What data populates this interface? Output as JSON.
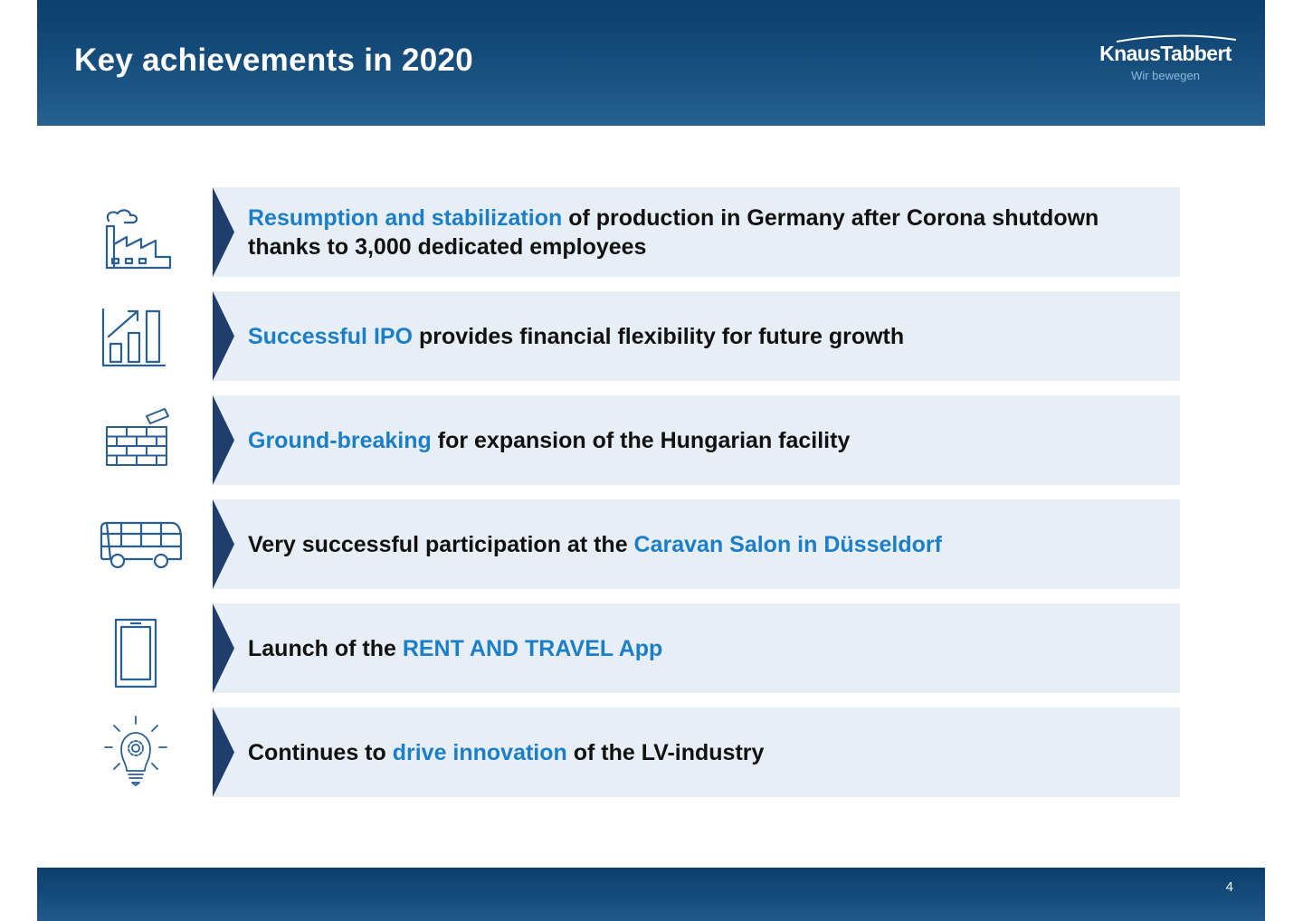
{
  "header": {
    "title": "Key achievements in 2020",
    "logo_name": "KnausTabbert",
    "logo_tagline": "Wir bewegen"
  },
  "colors": {
    "header_blue": "#0c3f6d",
    "highlight_blue": "#1b7ec8",
    "item_background": "#e8eef6",
    "arrow_navy": "#1f3e6e",
    "icon_blue": "#2a5f96"
  },
  "achievements": [
    {
      "icon": "factory-icon",
      "segments": [
        {
          "text": "Resumption and stabilization",
          "highlight": true
        },
        {
          "text": " of production in Germany after Corona shutdown thanks to 3,000 dedicated employees",
          "highlight": false
        }
      ]
    },
    {
      "icon": "growth-chart-icon",
      "segments": [
        {
          "text": "Successful IPO",
          "highlight": true
        },
        {
          "text": " provides financial flexibility for future growth",
          "highlight": false
        }
      ]
    },
    {
      "icon": "brick-wall-icon",
      "segments": [
        {
          "text": "Ground-breaking",
          "highlight": true
        },
        {
          "text": " for expansion of the Hungarian facility",
          "highlight": false
        }
      ]
    },
    {
      "icon": "bus-icon",
      "segments": [
        {
          "text": "Very successful participation at the ",
          "highlight": false
        },
        {
          "text": "Caravan Salon in Düsseldorf",
          "highlight": true
        }
      ]
    },
    {
      "icon": "smartphone-icon",
      "segments": [
        {
          "text": "Launch of the ",
          "highlight": false
        },
        {
          "text": "RENT AND TRAVEL App",
          "highlight": true
        }
      ]
    },
    {
      "icon": "lightbulb-gear-icon",
      "segments": [
        {
          "text": "Continues to ",
          "highlight": false
        },
        {
          "text": "drive innovation",
          "highlight": true
        },
        {
          "text": " of the LV-industry",
          "highlight": false
        }
      ]
    }
  ],
  "footer": {
    "page_number": "4"
  }
}
